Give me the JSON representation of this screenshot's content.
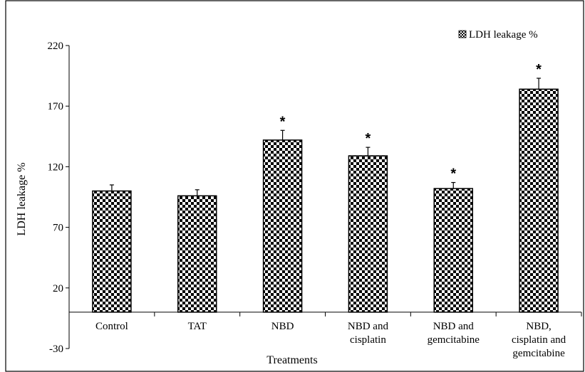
{
  "chart_data": {
    "type": "bar",
    "title": "",
    "xlabel": "Treatments",
    "ylabel": "LDH leakage %",
    "ylim": [
      -30,
      220
    ],
    "yticks": [
      -30,
      20,
      70,
      120,
      170,
      220
    ],
    "grid": false,
    "legend_position": "top-right",
    "categories": [
      [
        "Control"
      ],
      [
        "TAT"
      ],
      [
        "NBD"
      ],
      [
        "NBD and",
        "cisplatin"
      ],
      [
        "NBD and",
        "gemcitabine"
      ],
      [
        "NBD,",
        "cisplatin and",
        "gemcitabine"
      ]
    ],
    "series": [
      {
        "name": "LDH leakage %",
        "values": [
          100,
          96,
          142,
          129,
          102,
          184
        ],
        "errors": [
          5,
          5,
          8,
          7,
          5,
          9
        ],
        "significant": [
          false,
          false,
          true,
          true,
          true,
          true
        ],
        "pattern": "checkerboard",
        "colors": [
          "#000000",
          "#ffffff"
        ]
      }
    ],
    "significance_marker": "*"
  }
}
